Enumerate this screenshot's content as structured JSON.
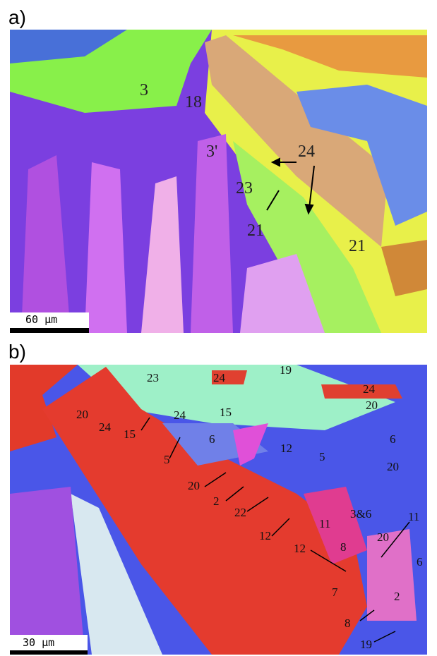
{
  "panel_a": {
    "label": "a)",
    "scale_bar": "60 μm",
    "annotations": [
      "3",
      "18",
      "3'",
      "24",
      "23",
      "21",
      "21"
    ]
  },
  "panel_b": {
    "label": "b)",
    "scale_bar": "30 μm",
    "annotations": [
      "23",
      "24",
      "19",
      "24",
      "20",
      "20",
      "24",
      "15",
      "24",
      "15",
      "6",
      "12",
      "5",
      "6",
      "20",
      "5",
      "20",
      "2",
      "22",
      "12",
      "11",
      "3&6",
      "11",
      "20",
      "8",
      "12",
      "7",
      "6",
      "2",
      "8",
      "19"
    ]
  }
}
